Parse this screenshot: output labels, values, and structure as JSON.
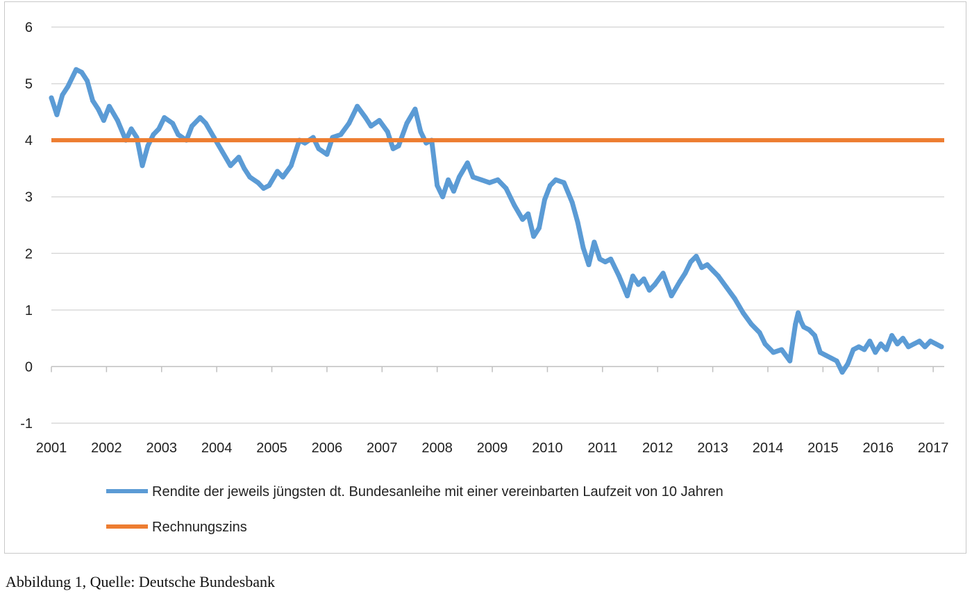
{
  "caption": "Abbildung 1, Quelle: Deutsche Bundesbank",
  "chart_data": {
    "type": "line",
    "title": "",
    "xlabel": "",
    "ylabel": "",
    "xlim": [
      2001,
      2017.2
    ],
    "ylim": [
      -1,
      6
    ],
    "yticks": [
      "6",
      "5",
      "4",
      "3",
      "2",
      "1",
      "0",
      "-1"
    ],
    "xticks": [
      "2001",
      "2002",
      "2003",
      "2004",
      "2005",
      "2006",
      "2007",
      "2008",
      "2009",
      "2010",
      "2011",
      "2012",
      "2013",
      "2014",
      "2015",
      "2016",
      "2017"
    ],
    "grid": "horizontal",
    "legend_position": "bottom",
    "series": [
      {
        "name": "Rendite der jeweils jüngsten dt. Bundesanleihe mit einer vereinbarten Laufzeit von 10 Jahren",
        "color": "#5b9bd5",
        "x": [
          2001.0,
          2001.1,
          2001.2,
          2001.3,
          2001.45,
          2001.55,
          2001.65,
          2001.75,
          2001.85,
          2001.95,
          2002.05,
          2002.2,
          2002.35,
          2002.45,
          2002.55,
          2002.65,
          2002.75,
          2002.85,
          2002.95,
          2003.05,
          2003.2,
          2003.3,
          2003.45,
          2003.55,
          2003.7,
          2003.8,
          2003.95,
          2004.1,
          2004.25,
          2004.4,
          2004.5,
          2004.6,
          2004.75,
          2004.85,
          2004.95,
          2005.1,
          2005.2,
          2005.35,
          2005.5,
          2005.6,
          2005.75,
          2005.85,
          2006.0,
          2006.1,
          2006.25,
          2006.4,
          2006.55,
          2006.7,
          2006.8,
          2006.95,
          2007.1,
          2007.2,
          2007.3,
          2007.45,
          2007.6,
          2007.7,
          2007.8,
          2007.9,
          2008.0,
          2008.1,
          2008.2,
          2008.3,
          2008.4,
          2008.55,
          2008.65,
          2008.8,
          2008.95,
          2009.1,
          2009.25,
          2009.4,
          2009.55,
          2009.65,
          2009.75,
          2009.85,
          2009.95,
          2010.05,
          2010.15,
          2010.3,
          2010.45,
          2010.55,
          2010.65,
          2010.75,
          2010.85,
          2010.95,
          2011.05,
          2011.15,
          2011.3,
          2011.45,
          2011.55,
          2011.65,
          2011.75,
          2011.85,
          2011.95,
          2012.1,
          2012.25,
          2012.4,
          2012.5,
          2012.6,
          2012.7,
          2012.8,
          2012.9,
          2013.0,
          2013.1,
          2013.25,
          2013.4,
          2013.55,
          2013.7,
          2013.85,
          2013.95,
          2014.1,
          2014.25,
          2014.4,
          2014.5,
          2014.55,
          2014.6,
          2014.65,
          2014.75,
          2014.85,
          2014.95,
          2015.05,
          2015.15,
          2015.25,
          2015.35,
          2015.45,
          2015.55,
          2015.65,
          2015.75,
          2015.85,
          2015.95,
          2016.05,
          2016.15,
          2016.25,
          2016.35,
          2016.45,
          2016.55,
          2016.65,
          2016.75,
          2016.85,
          2016.95,
          2017.05,
          2017.15
        ],
        "values": [
          4.75,
          4.45,
          4.8,
          4.95,
          5.25,
          5.2,
          5.05,
          4.7,
          4.55,
          4.35,
          4.6,
          4.35,
          4.0,
          4.2,
          4.05,
          3.55,
          3.9,
          4.1,
          4.2,
          4.4,
          4.3,
          4.1,
          4.0,
          4.25,
          4.4,
          4.3,
          4.05,
          3.8,
          3.55,
          3.7,
          3.5,
          3.35,
          3.25,
          3.15,
          3.2,
          3.45,
          3.35,
          3.55,
          4.0,
          3.95,
          4.05,
          3.85,
          3.75,
          4.05,
          4.1,
          4.3,
          4.6,
          4.4,
          4.25,
          4.35,
          4.15,
          3.85,
          3.9,
          4.3,
          4.55,
          4.15,
          3.95,
          4.0,
          3.2,
          3.0,
          3.3,
          3.1,
          3.35,
          3.6,
          3.35,
          3.3,
          3.25,
          3.3,
          3.15,
          2.85,
          2.6,
          2.7,
          2.3,
          2.45,
          2.95,
          3.2,
          3.3,
          3.25,
          2.9,
          2.55,
          2.1,
          1.8,
          2.2,
          1.9,
          1.85,
          1.9,
          1.6,
          1.25,
          1.6,
          1.45,
          1.55,
          1.35,
          1.45,
          1.65,
          1.25,
          1.5,
          1.65,
          1.85,
          1.95,
          1.75,
          1.8,
          1.7,
          1.6,
          1.4,
          1.2,
          0.95,
          0.75,
          0.6,
          0.4,
          0.25,
          0.3,
          0.1,
          0.75,
          0.95,
          0.8,
          0.7,
          0.65,
          0.55,
          0.25,
          0.2,
          0.15,
          0.1,
          -0.1,
          0.05,
          0.3,
          0.35,
          0.3,
          0.45,
          0.25,
          0.4,
          0.3,
          0.55,
          0.4,
          0.5,
          0.35,
          0.4,
          0.45,
          0.35,
          0.45,
          0.4,
          0.35
        ]
      },
      {
        "name": "Rechnungszins",
        "color": "#ed7d31",
        "x": [
          2001.0,
          2017.2
        ],
        "values": [
          4.0,
          4.0
        ]
      }
    ]
  }
}
